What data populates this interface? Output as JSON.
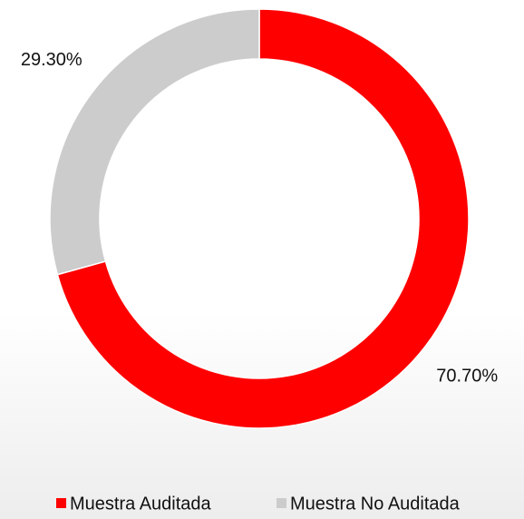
{
  "chart_data": {
    "type": "donut",
    "categories": [
      "Muestra Auditada",
      "Muestra No Auditada"
    ],
    "values": [
      70.7,
      29.3
    ],
    "value_labels": [
      "70.70%",
      "29.30%"
    ],
    "colors": [
      "#ff0000",
      "#cccccc"
    ],
    "legend": "bottom"
  }
}
